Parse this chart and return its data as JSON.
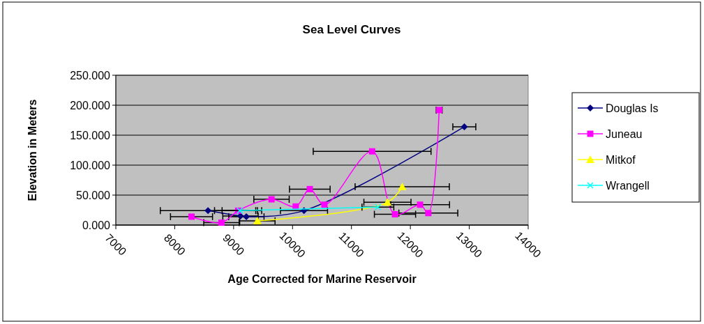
{
  "chart_data": {
    "type": "line",
    "title": "Sea Level Curves",
    "xlabel": "Age Corrected for Marine Reservoir",
    "ylabel": "Elevation in Meters",
    "xlim": [
      7000,
      14000
    ],
    "xticks": [
      7000,
      8000,
      9000,
      10000,
      11000,
      12000,
      13000,
      14000
    ],
    "ylim": [
      0,
      250
    ],
    "yticks": [
      {
        "value": 0,
        "label": "0.000"
      },
      {
        "value": 50,
        "label": "50.000"
      },
      {
        "value": 100,
        "label": "100.000"
      },
      {
        "value": 150,
        "label": "150.000"
      },
      {
        "value": 200,
        "label": "200.000"
      },
      {
        "value": 250,
        "label": "250.000"
      }
    ],
    "grid": "y",
    "legend": "right",
    "series": [
      {
        "name": "Douglas Is",
        "color": "#000080",
        "marker": "diamond",
        "x": [
          8565,
          9116,
          9216,
          10194,
          12916
        ],
        "values": [
          24,
          15,
          14,
          24,
          164
        ],
        "xerrors": [
          810,
          300,
          300,
          400,
          195
        ]
      },
      {
        "name": "Juneau",
        "color": "#ff00ff",
        "marker": "square",
        "x": [
          8285,
          8793,
          9076,
          9643,
          10054,
          10293,
          10541,
          11351,
          11739,
          12165,
          12305,
          12489
        ],
        "values": [
          14,
          4,
          24,
          43,
          31,
          60,
          34,
          123,
          18,
          34,
          20,
          192
        ],
        "xerrors": [
          357,
          300,
          400,
          300,
          null,
          345,
          null,
          1000,
          350,
          500,
          500,
          50
        ]
      },
      {
        "name": "Mitkof",
        "color": "#ffff00",
        "marker": "triangle",
        "x": [
          9403,
          11611,
          11862
        ],
        "values": [
          7,
          38,
          64
        ],
        "xerrors": [
          300,
          400,
          800
        ]
      },
      {
        "name": "Wrangell",
        "color": "#00ffff",
        "marker": "cross",
        "x": [
          9104,
          11449
        ],
        "values": [
          24,
          30
        ],
        "xerrors": [
          300,
          270
        ]
      }
    ]
  }
}
